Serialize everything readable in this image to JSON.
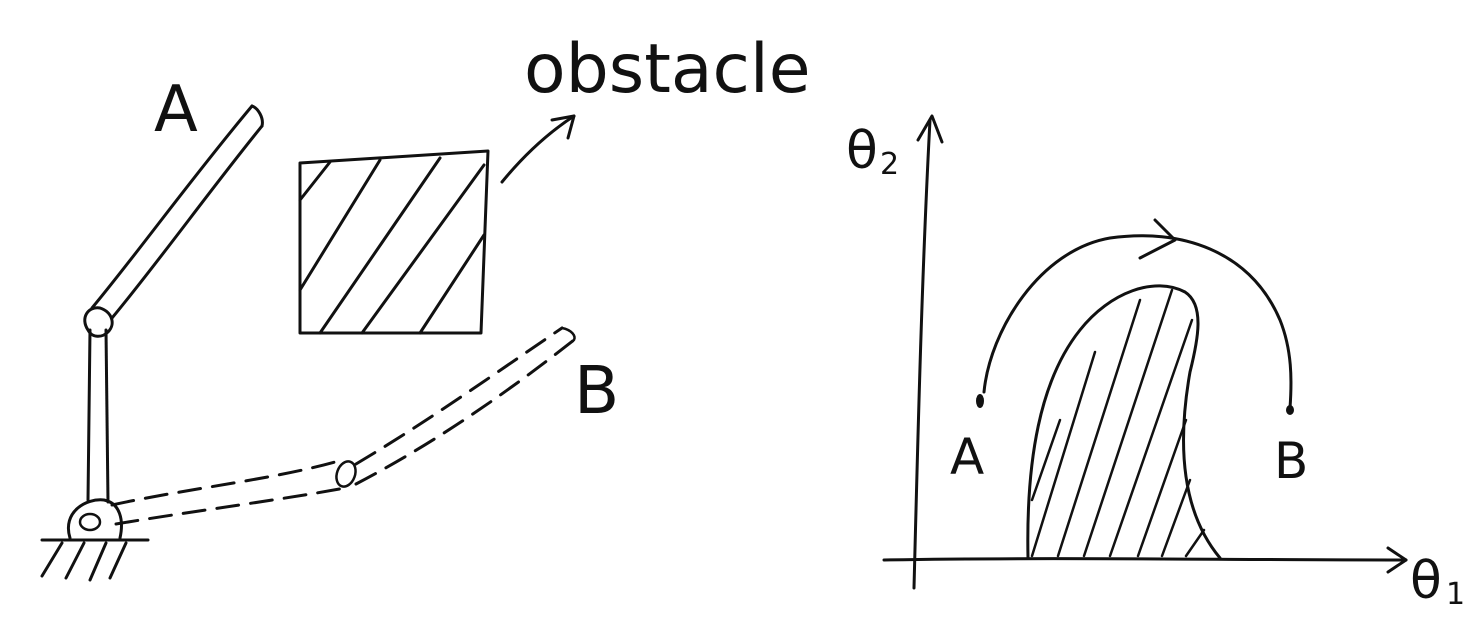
{
  "left_diagram": {
    "label_A": "A",
    "label_B": "B",
    "obstacle_label": "obstacle"
  },
  "right_diagram": {
    "axis_y_symbol": "θ",
    "axis_y_sub": "2",
    "axis_x_symbol": "θ",
    "axis_x_sub": "1",
    "label_A": "A",
    "label_B": "B"
  },
  "colors": {
    "ink": "#111111",
    "background": "#ffffff"
  }
}
